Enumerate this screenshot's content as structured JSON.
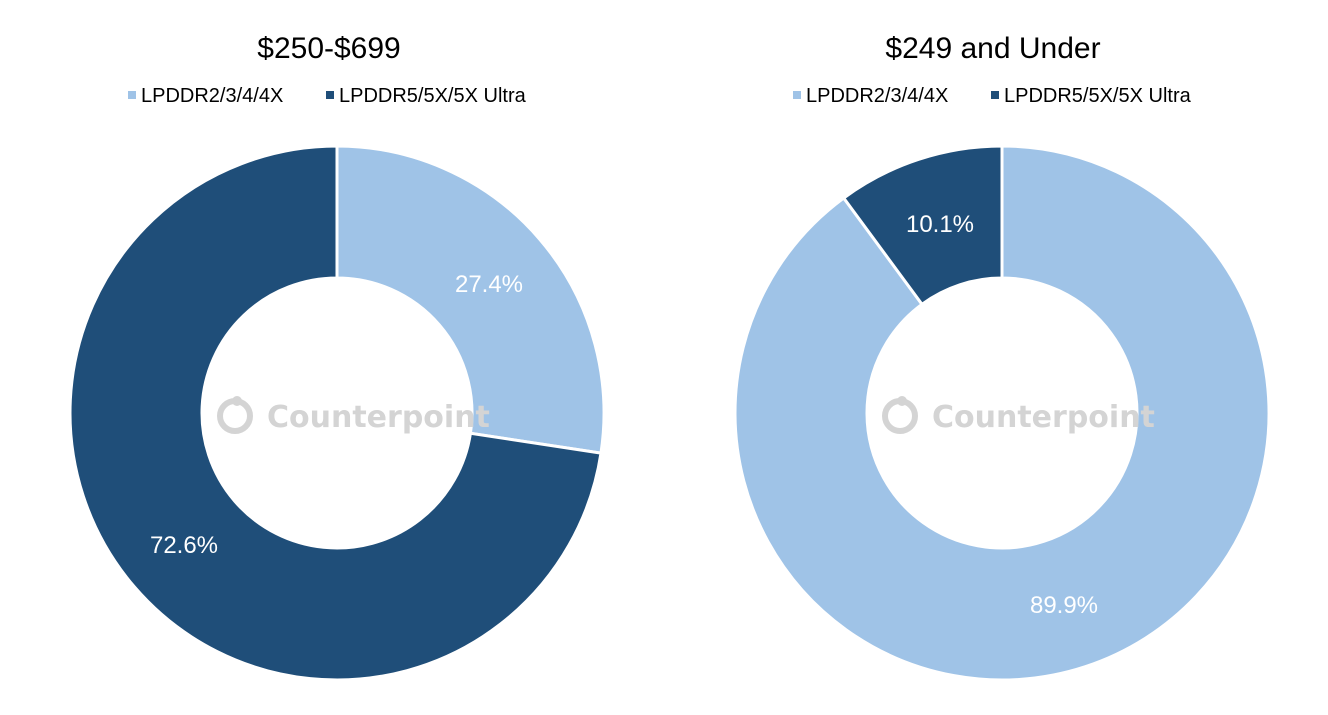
{
  "watermark": {
    "brand": "Counterpoint"
  },
  "colors": {
    "light": "#9fc3e7",
    "dark": "#1f4e79",
    "separator": "#ffffff",
    "watermark": "#d4d4d4"
  },
  "chart_data": [
    {
      "type": "pie",
      "title": "$250-$699",
      "legend_position": "top",
      "slices": [
        {
          "label": "LPDDR2/3/4/4X",
          "value": 27.4,
          "value_label": "27.4%",
          "color": "#9fc3e7"
        },
        {
          "label": "LPDDR5/5X/5X Ultra",
          "value": 72.6,
          "value_label": "72.6%",
          "color": "#1f4e79"
        }
      ]
    },
    {
      "type": "pie",
      "title": "$249 and Under",
      "legend_position": "top",
      "slices": [
        {
          "label": "LPDDR2/3/4/4X",
          "value": 89.9,
          "value_label": "89.9%",
          "color": "#9fc3e7"
        },
        {
          "label": "LPDDR5/5X/5X Ultra",
          "value": 10.1,
          "value_label": "10.1%",
          "color": "#1f4e79"
        }
      ]
    }
  ]
}
